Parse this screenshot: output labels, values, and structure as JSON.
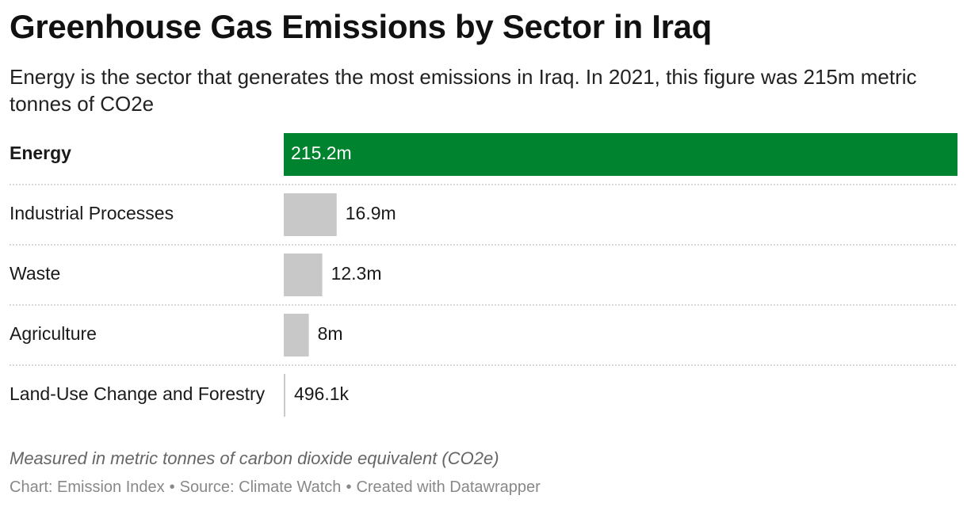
{
  "title": "Greenhouse Gas Emissions by Sector in Iraq",
  "subtitle": "Energy is the sector that generates the most emissions in Iraq. In 2021, this figure was 215m metric tonnes of CO2e",
  "notes": "Measured in metric tonnes of carbon dioxide equivalent (CO2e)",
  "footer": {
    "chart": "Chart: Emission Index",
    "separator": "•",
    "source": "Source: Climate Watch",
    "credit": "Created with Datawrapper"
  },
  "colors": {
    "highlight": "#00832e",
    "default_bar": "#c8c8c8",
    "divider": "#cccccc"
  },
  "chart_data": {
    "type": "bar",
    "orientation": "horizontal",
    "categories": [
      "Energy",
      "Industrial Processes",
      "Waste",
      "Agriculture",
      "Land-Use Change and Forestry"
    ],
    "values": [
      215.2,
      16.9,
      12.3,
      8,
      0.4961
    ],
    "value_labels": [
      "215.2m",
      "16.9m",
      "12.3m",
      "8m",
      "496.1k"
    ],
    "unit": "million metric tonnes CO2e",
    "highlight": [
      "Energy"
    ],
    "xlim": [
      0,
      215.2
    ],
    "grid": false,
    "legend": "none"
  }
}
